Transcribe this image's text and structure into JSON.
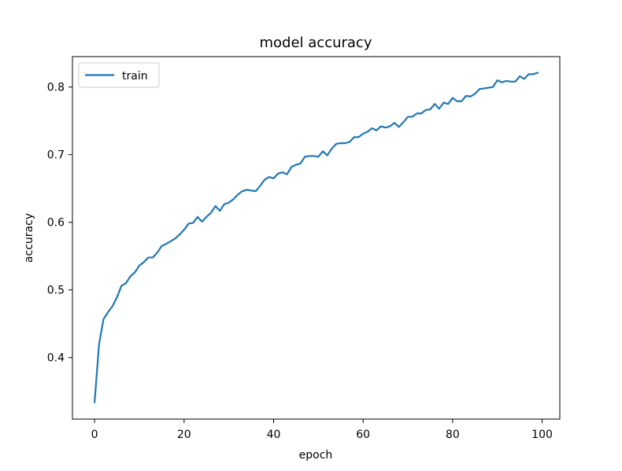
{
  "chart_data": {
    "type": "line",
    "title": "model accuracy",
    "xlabel": "epoch",
    "ylabel": "accuracy",
    "xlim": [
      -4.95,
      103.95
    ],
    "ylim": [
      0.309,
      0.845
    ],
    "xticks": [
      0,
      20,
      40,
      60,
      80,
      100
    ],
    "xtick_labels": [
      "0",
      "20",
      "40",
      "60",
      "80",
      "100"
    ],
    "yticks": [
      0.4,
      0.5,
      0.6,
      0.7,
      0.8
    ],
    "ytick_labels": [
      "0.4",
      "0.5",
      "0.6",
      "0.7",
      "0.8"
    ],
    "grid": false,
    "legend": {
      "position": "upper-left",
      "entries": [
        "train"
      ]
    },
    "series": [
      {
        "name": "train",
        "color": "#1f77b4",
        "x": [
          0,
          1,
          2,
          3,
          4,
          5,
          6,
          7,
          8,
          9,
          10,
          11,
          12,
          13,
          14,
          15,
          16,
          17,
          18,
          19,
          20,
          21,
          22,
          23,
          24,
          25,
          26,
          27,
          28,
          29,
          30,
          31,
          32,
          33,
          34,
          35,
          36,
          37,
          38,
          39,
          40,
          41,
          42,
          43,
          44,
          45,
          46,
          47,
          48,
          49,
          50,
          51,
          52,
          53,
          54,
          55,
          56,
          57,
          58,
          59,
          60,
          61,
          62,
          63,
          64,
          65,
          66,
          67,
          68,
          69,
          70,
          71,
          72,
          73,
          74,
          75,
          76,
          77,
          78,
          79,
          80,
          81,
          82,
          83,
          84,
          85,
          86,
          87,
          88,
          89,
          90,
          91,
          92,
          93,
          94,
          95,
          96,
          97,
          98,
          99
        ],
        "values": [
          0.334,
          0.42,
          0.457,
          0.467,
          0.476,
          0.489,
          0.506,
          0.51,
          0.52,
          0.526,
          0.536,
          0.541,
          0.548,
          0.548,
          0.555,
          0.565,
          0.568,
          0.572,
          0.576,
          0.582,
          0.589,
          0.598,
          0.599,
          0.608,
          0.601,
          0.608,
          0.614,
          0.624,
          0.617,
          0.627,
          0.629,
          0.634,
          0.641,
          0.646,
          0.648,
          0.647,
          0.646,
          0.654,
          0.663,
          0.667,
          0.665,
          0.672,
          0.674,
          0.671,
          0.682,
          0.685,
          0.687,
          0.697,
          0.698,
          0.698,
          0.697,
          0.705,
          0.699,
          0.709,
          0.716,
          0.717,
          0.717,
          0.719,
          0.726,
          0.726,
          0.731,
          0.734,
          0.739,
          0.736,
          0.742,
          0.74,
          0.742,
          0.747,
          0.741,
          0.748,
          0.756,
          0.756,
          0.761,
          0.761,
          0.766,
          0.767,
          0.775,
          0.768,
          0.777,
          0.775,
          0.784,
          0.779,
          0.779,
          0.787,
          0.786,
          0.79,
          0.797,
          0.798,
          0.799,
          0.8,
          0.81,
          0.807,
          0.809,
          0.808,
          0.808,
          0.816,
          0.812,
          0.819,
          0.819,
          0.821
        ]
      }
    ]
  }
}
